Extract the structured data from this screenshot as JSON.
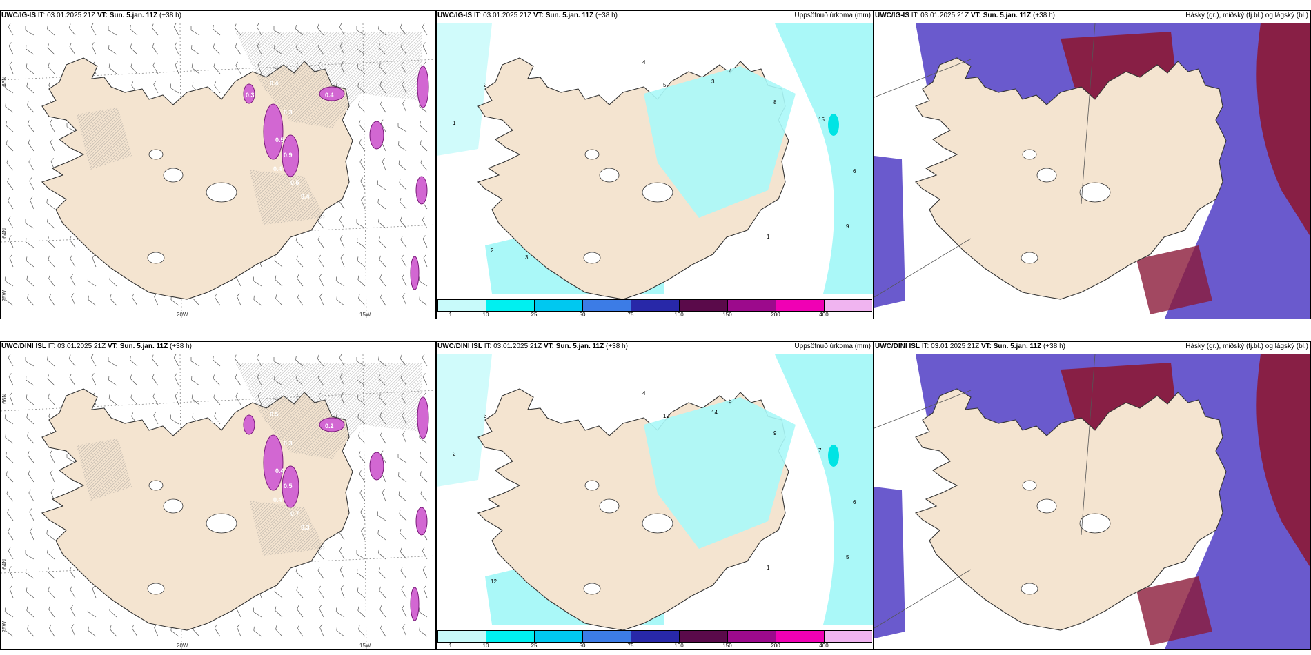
{
  "colors": {
    "land": "#f4e4d0",
    "sea": "#ffffff",
    "precip_light": "#aaf8f8",
    "precip_mid": "#00e4e4",
    "cloud_high": "#6a5acd",
    "cloud_mid": "#4e4fb5",
    "cloud_low": "#8b1a3a",
    "ice_magenta": "#d267d2",
    "hatch": "#888888",
    "colorbar": [
      "#c8fafa",
      "#00f0f0",
      "#00c8f0",
      "#3c7ce6",
      "#2828a8",
      "#5a0a4a",
      "#9c0a8c",
      "#f000b4",
      "#f0b4f0"
    ]
  },
  "panels": [
    {
      "id": "top-left",
      "model": "UWC/IG-IS",
      "it_label": "IT:",
      "it_value": "03.01.2025 21Z",
      "vt_label": "VT:",
      "vt_value": "Sun. 5.jan. 11Z",
      "lead": "(+38 h)",
      "right_title": "",
      "lat_labels": [
        "66N",
        "64N",
        "25W"
      ],
      "lon_labels": [
        "20W",
        "15W"
      ],
      "values": [
        "0.1",
        "0.4",
        "0.3",
        "0.4",
        "0.5",
        "0.9",
        "0.4",
        "0.5",
        "0.4",
        "0.4",
        "0.3",
        "1.0",
        "0.5",
        "0.2"
      ]
    },
    {
      "id": "top-middle",
      "model": "UWC/IG-IS",
      "it_label": "IT:",
      "it_value": "03.01.2025 21Z",
      "vt_label": "VT:",
      "vt_value": "Sun. 5.jan. 11Z",
      "lead": "(+38 h)",
      "right_title": "Uppsöfnuð úrkoma (mm)",
      "colorbar_labels": [
        "1",
        "10",
        "25",
        "50",
        "75",
        "100",
        "150",
        "200",
        "400"
      ],
      "values": [
        "1",
        "2",
        "4",
        "5",
        "3",
        "7",
        "8",
        "15",
        "6",
        "9",
        "1",
        "2",
        "3"
      ]
    },
    {
      "id": "top-right",
      "model": "UWC/IG-IS",
      "it_label": "IT:",
      "it_value": "03.01.2025 21Z",
      "vt_label": "VT:",
      "vt_value": "Sun. 5.jan. 11Z",
      "lead": "(+38 h)",
      "right_title": "Háský (gr.), miðský (fj.bl.) og lágský (bl.)"
    },
    {
      "id": "bottom-left",
      "model": "UWC/DINI ISL",
      "it_label": "IT:",
      "it_value": "03.01.2025 21Z",
      "vt_label": "VT:",
      "vt_value": "Sun. 5.jan. 11Z",
      "lead": "(+38 h)",
      "right_title": "",
      "lat_labels": [
        "66N",
        "64N",
        "25W"
      ],
      "lon_labels": [
        "20W",
        "15W"
      ],
      "values": [
        "0.4",
        "0.5",
        "0.3",
        "0.2",
        "0.4",
        "0.5",
        "0.4",
        "0.7",
        "0.3",
        "0.4"
      ]
    },
    {
      "id": "bottom-middle",
      "model": "UWC/DINI ISL",
      "it_label": "IT:",
      "it_value": "03.01.2025 21Z",
      "vt_label": "VT:",
      "vt_value": "Sun. 5.jan. 11Z",
      "lead": "(+38 h)",
      "right_title": "Uppsöfnuð úrkoma (mm)",
      "colorbar_labels": [
        "1",
        "10",
        "25",
        "50",
        "75",
        "100",
        "150",
        "200",
        "400"
      ],
      "values": [
        "2",
        "3",
        "4",
        "12",
        "14",
        "8",
        "9",
        "7",
        "6",
        "5",
        "1",
        "12"
      ]
    },
    {
      "id": "bottom-right",
      "model": "UWC/DINI ISL",
      "it_label": "IT:",
      "it_value": "03.01.2025 21Z",
      "vt_label": "VT:",
      "vt_value": "Sun. 5.jan. 11Z",
      "lead": "(+38 h)",
      "right_title": "Háský (gr.), miðský (fj.bl.) og lágský (bl.)"
    }
  ]
}
